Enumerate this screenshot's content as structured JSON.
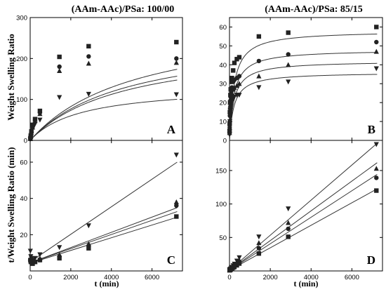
{
  "figure": {
    "titles": [
      "(AAm-AAc)/PSa:  100/00",
      "(AAm-AAc)/PSa:  85/15"
    ],
    "ylabel_top": "Weight Swelling Ratio",
    "ylabel_bottom": "t/Weight Swelling Ratio (min)",
    "xlabel": "t (min)"
  },
  "chart_data": [
    {
      "type": "scatter",
      "panel_label": "A",
      "title": "(AAm-AAc)/PSa:  100/00",
      "xlabel": "",
      "ylabel": "Weight Swelling Ratio",
      "xlim": [
        0,
        7500
      ],
      "ylim": [
        0,
        300
      ],
      "xticks": [
        0,
        2000,
        4000,
        6000
      ],
      "yticks": [
        0,
        100,
        200,
        300
      ],
      "show_xtick_labels": false,
      "fit_lines": "curve",
      "series": [
        {
          "marker": "square",
          "x": [
            10,
            30,
            60,
            120,
            240,
            480,
            1440,
            2880,
            7200
          ],
          "y": [
            5,
            12,
            22,
            38,
            52,
            72,
            204,
            230,
            240
          ],
          "fit": {
            "smax": 300,
            "k": 0.00019
          }
        },
        {
          "marker": "circle",
          "x": [
            10,
            30,
            60,
            120,
            240,
            480,
            1440,
            2880,
            7200
          ],
          "y": [
            4,
            10,
            20,
            35,
            50,
            68,
            180,
            205,
            200
          ],
          "fit": {
            "smax": 260,
            "k": 0.00021
          }
        },
        {
          "marker": "triangle-up",
          "x": [
            10,
            30,
            60,
            120,
            240,
            480,
            1440,
            2880,
            7200
          ],
          "y": [
            4,
            9,
            18,
            32,
            48,
            65,
            170,
            188,
            190
          ],
          "fit": {
            "smax": 240,
            "k": 0.00022
          }
        },
        {
          "marker": "triangle-down",
          "x": [
            10,
            30,
            60,
            120,
            240,
            480,
            1440,
            2880,
            7200
          ],
          "y": [
            3,
            8,
            15,
            28,
            40,
            50,
            105,
            113,
            112
          ],
          "fit": {
            "smax": 135,
            "k": 0.0004
          }
        }
      ]
    },
    {
      "type": "scatter",
      "panel_label": "B",
      "title": "(AAm-AAc)/PSa:  85/15",
      "xlabel": "",
      "ylabel": "",
      "xlim": [
        0,
        7500
      ],
      "ylim": [
        0,
        65
      ],
      "xticks": [
        0,
        2000,
        4000,
        6000
      ],
      "yticks": [
        0,
        10,
        20,
        30,
        40,
        50,
        60
      ],
      "show_xtick_labels": false,
      "fit_lines": "curve",
      "series": [
        {
          "marker": "square",
          "x": [
            5,
            10,
            20,
            30,
            45,
            60,
            90,
            120,
            180,
            240,
            360,
            480,
            1440,
            2880,
            7200
          ],
          "y": [
            5,
            9,
            15,
            20,
            24,
            27,
            31,
            33,
            37,
            41,
            43,
            44,
            55,
            57,
            60
          ],
          "fit": {
            "smax": 58,
            "k": 0.0045
          }
        },
        {
          "marker": "circle",
          "x": [
            5,
            10,
            20,
            30,
            45,
            60,
            90,
            120,
            180,
            240,
            360,
            480,
            1440,
            2880,
            7200
          ],
          "y": [
            4,
            8,
            13,
            17,
            21,
            23,
            26,
            28,
            31,
            32,
            33,
            34,
            42,
            45.5,
            52
          ],
          "fit": {
            "smax": 48,
            "k": 0.0045
          }
        },
        {
          "marker": "triangle-up",
          "x": [
            5,
            10,
            20,
            30,
            45,
            60,
            90,
            120,
            180,
            240,
            360,
            480,
            1440,
            2880,
            7200
          ],
          "y": [
            4,
            7,
            11,
            15,
            19,
            21,
            23,
            25,
            27,
            28,
            29,
            30,
            34,
            40,
            47
          ],
          "fit": {
            "smax": 42,
            "k": 0.0045
          }
        },
        {
          "marker": "triangle-down",
          "x": [
            5,
            10,
            20,
            30,
            45,
            60,
            90,
            120,
            180,
            240,
            360,
            480,
            1440,
            2880,
            7200
          ],
          "y": [
            3,
            6,
            10,
            13,
            16,
            18,
            20,
            21,
            22,
            23,
            24,
            24,
            28,
            31,
            38
          ],
          "fit": {
            "smax": 36,
            "k": 0.0045
          }
        }
      ]
    },
    {
      "type": "scatter",
      "panel_label": "C",
      "title": "",
      "xlabel": "t (min)",
      "ylabel": "t/Weight Swelling Ratio (min)",
      "xlim": [
        0,
        7500
      ],
      "ylim": [
        0,
        72
      ],
      "xticks": [
        0,
        2000,
        4000,
        6000
      ],
      "yticks": [
        0,
        20,
        40,
        60
      ],
      "show_xtick_labels": true,
      "fit_lines": "linear",
      "series": [
        {
          "marker": "triangle-down",
          "x": [
            10,
            30,
            60,
            120,
            240,
            480,
            1440,
            2880,
            7200
          ],
          "y": [
            11,
            8,
            7,
            6,
            7,
            9,
            13,
            25,
            64
          ],
          "fit": {
            "intercept": 5,
            "slope": 0.0076
          }
        },
        {
          "marker": "triangle-up",
          "x": [
            10,
            30,
            60,
            120,
            240,
            480,
            1440,
            2880,
            7200
          ],
          "y": [
            7,
            6,
            5,
            5,
            5,
            7,
            9,
            15,
            38
          ],
          "fit": {
            "intercept": 4.5,
            "slope": 0.0042
          }
        },
        {
          "marker": "circle",
          "x": [
            10,
            30,
            60,
            120,
            240,
            480,
            1440,
            2880,
            7200
          ],
          "y": [
            6,
            5,
            5,
            5,
            5,
            6,
            8,
            14,
            36
          ],
          "fit": {
            "intercept": 4.5,
            "slope": 0.0039
          }
        },
        {
          "marker": "square",
          "x": [
            10,
            30,
            60,
            120,
            240,
            480,
            1440,
            2880,
            7200
          ],
          "y": [
            6,
            5,
            5,
            4,
            5,
            6,
            7,
            12.5,
            30
          ],
          "fit": {
            "intercept": 4.3,
            "slope": 0.0035
          }
        }
      ]
    },
    {
      "type": "scatter",
      "panel_label": "D",
      "title": "",
      "xlabel": "t (min)",
      "ylabel": "",
      "xlim": [
        0,
        7500
      ],
      "ylim": [
        0,
        195
      ],
      "xticks": [
        0,
        2000,
        4000,
        6000
      ],
      "yticks": [
        0,
        50,
        100,
        150
      ],
      "show_xtick_labels": true,
      "fit_lines": "linear",
      "series": [
        {
          "marker": "triangle-down",
          "x": [
            5,
            10,
            20,
            30,
            45,
            60,
            90,
            120,
            180,
            240,
            360,
            480,
            1440,
            2880,
            7200
          ],
          "y": [
            1.5,
            1.6,
            2,
            2.3,
            2.8,
            3.3,
            4.5,
            5.7,
            8,
            10.4,
            15,
            20,
            51,
            93,
            189
          ],
          "fit": {
            "intercept": 1,
            "slope": 0.0262
          }
        },
        {
          "marker": "triangle-up",
          "x": [
            5,
            10,
            20,
            30,
            45,
            60,
            90,
            120,
            180,
            240,
            360,
            480,
            1440,
            2880,
            7200
          ],
          "y": [
            1.2,
            1.4,
            1.8,
            2,
            2.4,
            2.9,
            3.9,
            4.8,
            6.7,
            8.6,
            12.4,
            16,
            42,
            72,
            153
          ],
          "fit": {
            "intercept": 1,
            "slope": 0.0222
          }
        },
        {
          "marker": "circle",
          "x": [
            5,
            10,
            20,
            30,
            45,
            60,
            90,
            120,
            180,
            240,
            360,
            480,
            1440,
            2880,
            7200
          ],
          "y": [
            1.2,
            1.3,
            1.5,
            1.8,
            2.1,
            2.6,
            3.5,
            4.3,
            5.8,
            7.5,
            10.9,
            14,
            34,
            63,
            139
          ],
          "fit": {
            "intercept": 1,
            "slope": 0.0198
          }
        },
        {
          "marker": "square",
          "x": [
            5,
            10,
            20,
            30,
            45,
            60,
            90,
            120,
            180,
            240,
            360,
            480,
            1440,
            2880,
            7200
          ],
          "y": [
            1,
            1.1,
            1.3,
            1.5,
            1.9,
            2.2,
            2.9,
            3.6,
            4.9,
            5.9,
            8.4,
            11,
            26,
            51,
            120
          ],
          "fit": {
            "intercept": 1,
            "slope": 0.0168
          }
        }
      ]
    }
  ]
}
